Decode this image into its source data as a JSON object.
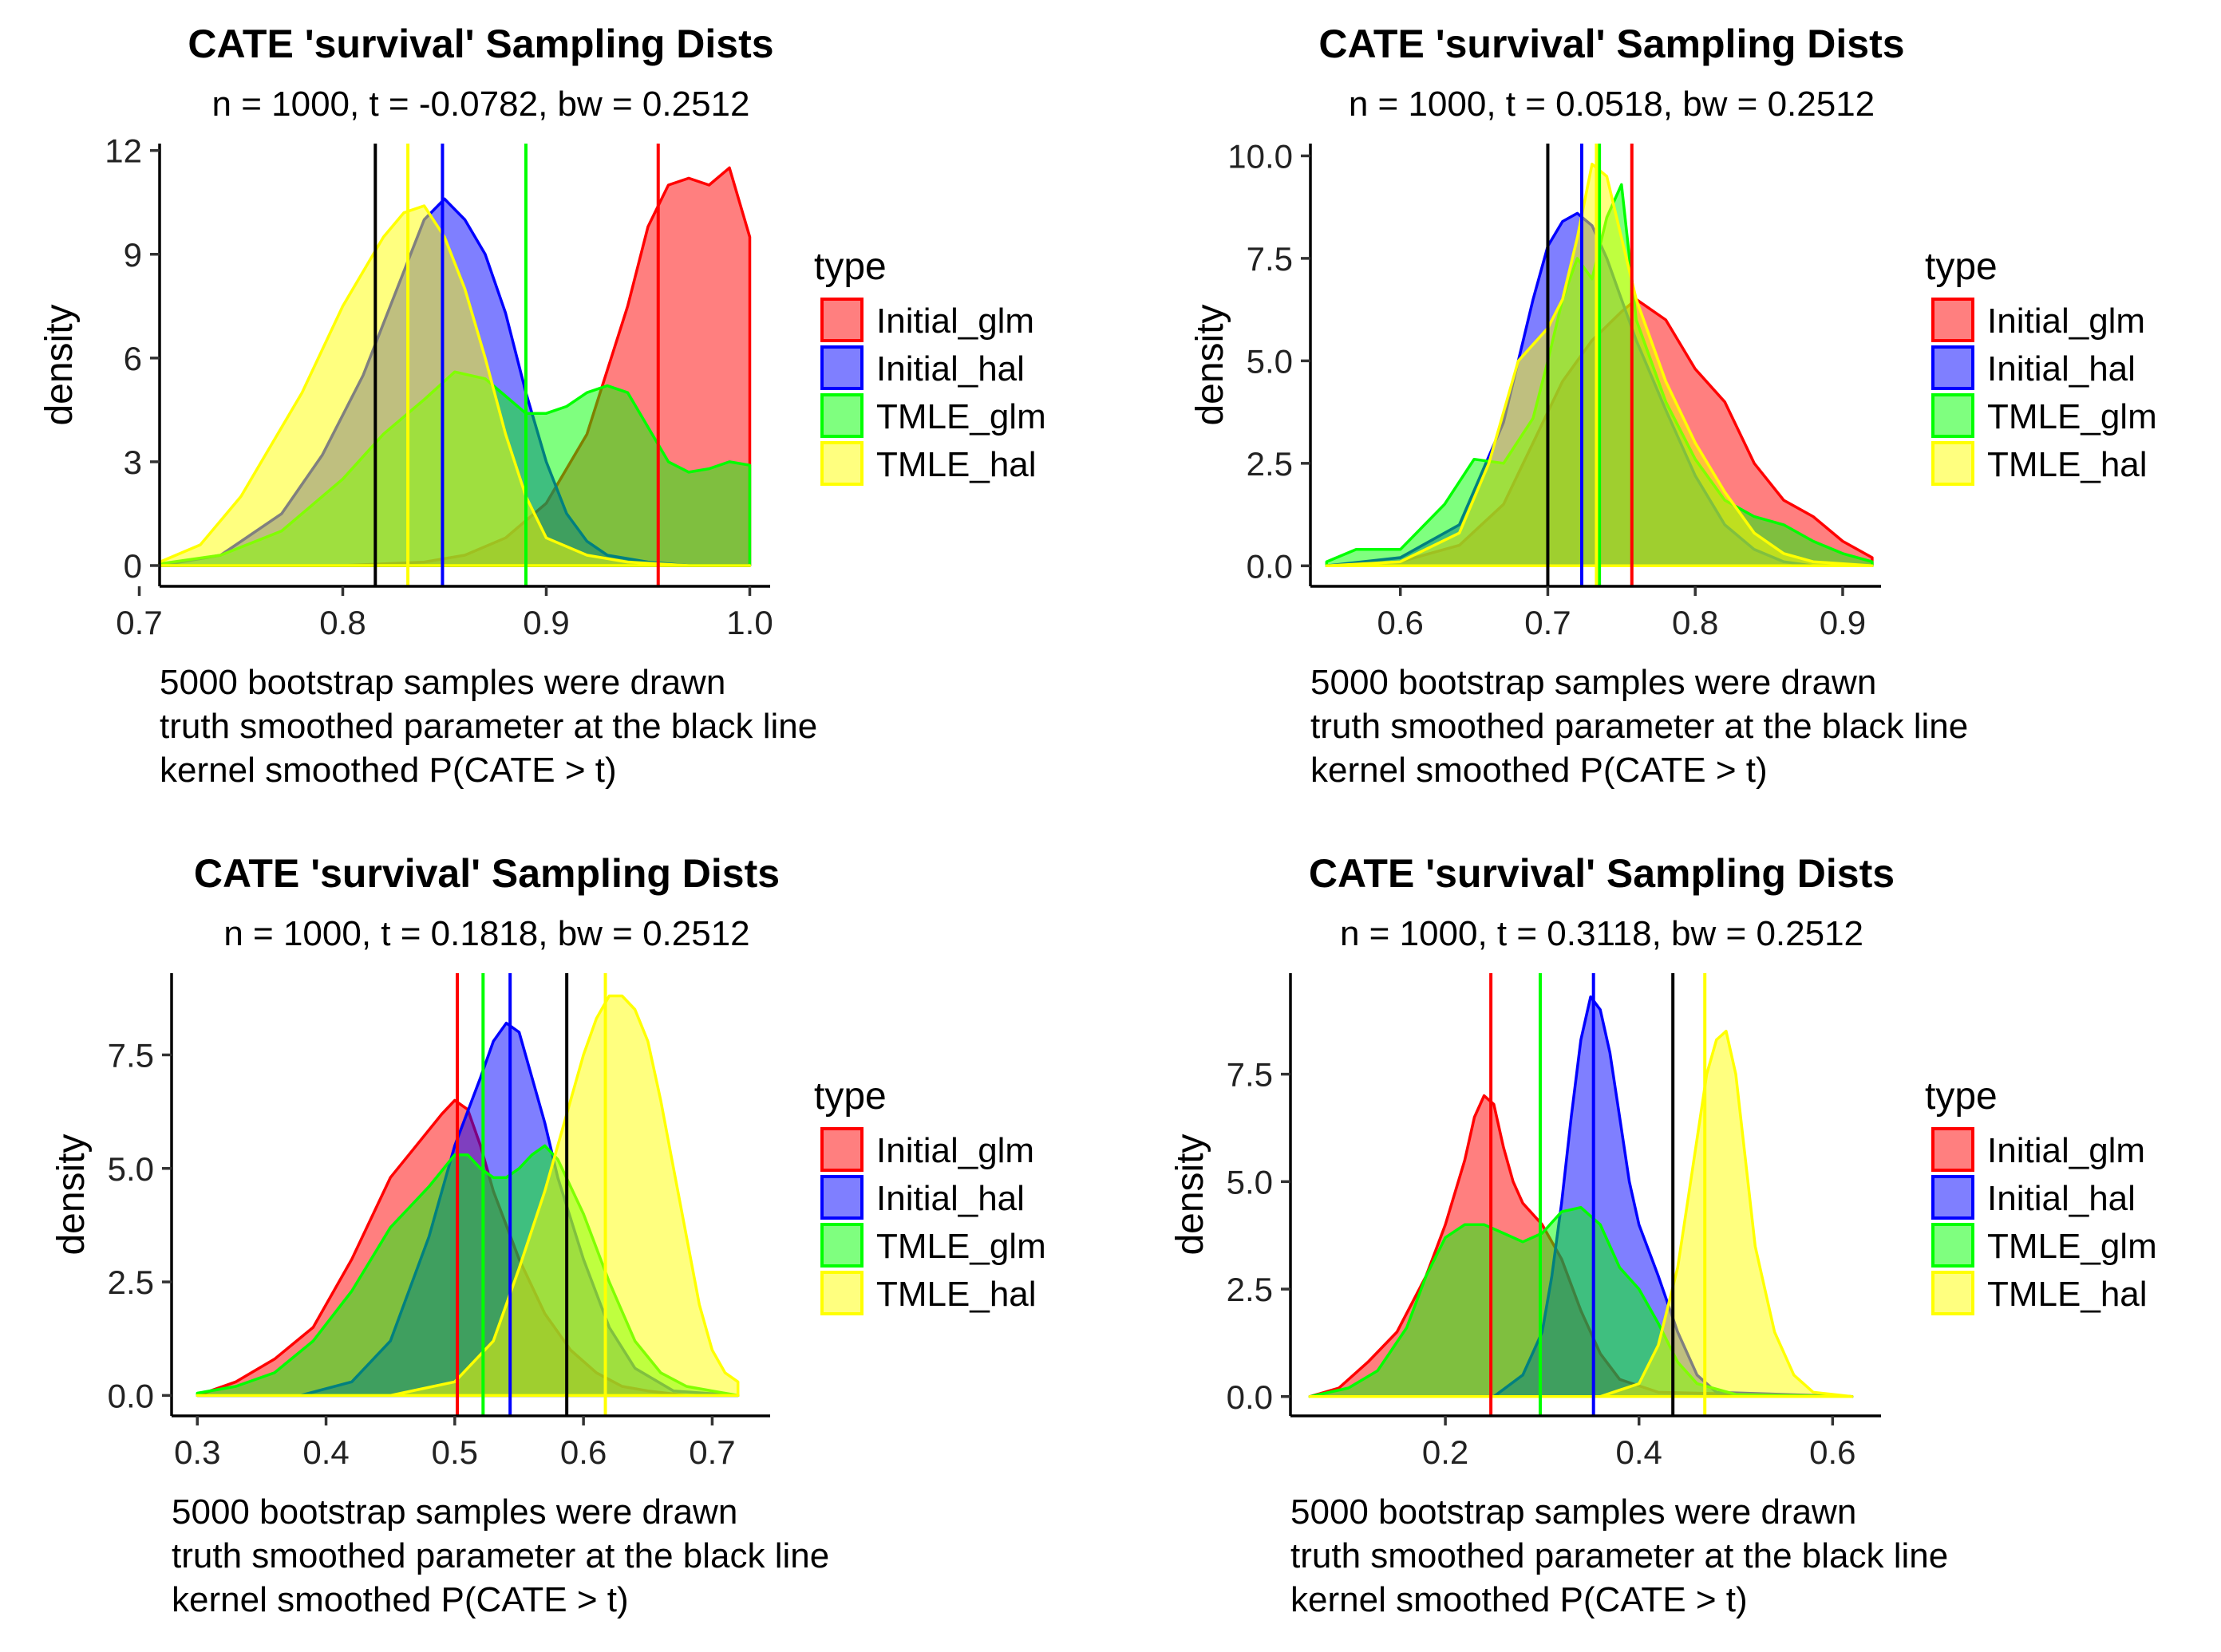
{
  "legend_title": "type",
  "series_colors": {
    "Initial_glm": "#FF0000",
    "Initial_hal": "#0000FF",
    "TMLE_glm": "#00FF00",
    "TMLE_hal": "#FFFF00",
    "truth": "#000000"
  },
  "chart_data": [
    {
      "type": "area",
      "title": "CATE 'survival' Sampling Dists",
      "subtitle": "n = 1000, t = -0.0782, bw = 0.2512",
      "xlabel": "",
      "caption_lines": [
        "5000 bootstrap samples were drawn",
        "truth smoothed parameter at the black line",
        "kernel smoothed P(CATE > t)"
      ],
      "ylabel": "density",
      "xlim": [
        0.71,
        1.01
      ],
      "ylim": [
        -0.6,
        12.2
      ],
      "xticks": [
        0.7,
        0.8,
        0.9,
        1.0
      ],
      "xtick_labels": [
        "0.7",
        "0.8",
        "0.9",
        "1.0"
      ],
      "yticks": [
        0,
        3,
        6,
        9,
        12
      ],
      "ytick_labels": [
        "0",
        "3",
        "6",
        "9",
        "12"
      ],
      "legend": {
        "title": "type",
        "entries": [
          "Initial_glm",
          "Initial_hal",
          "TMLE_glm",
          "TMLE_hal"
        ],
        "position": "right"
      },
      "truth_line": 0.816,
      "series": [
        {
          "name": "Initial_glm",
          "mean": 0.955,
          "x": [
            0.71,
            0.8,
            0.84,
            0.86,
            0.88,
            0.9,
            0.92,
            0.94,
            0.95,
            0.96,
            0.97,
            0.98,
            0.99,
            1.0
          ],
          "y": [
            0,
            0,
            0.1,
            0.3,
            0.8,
            1.8,
            3.8,
            7.5,
            9.8,
            11.0,
            11.2,
            11.0,
            11.5,
            9.5
          ]
        },
        {
          "name": "Initial_hal",
          "mean": 0.849,
          "x": [
            0.71,
            0.74,
            0.77,
            0.79,
            0.81,
            0.83,
            0.84,
            0.85,
            0.86,
            0.87,
            0.88,
            0.89,
            0.9,
            0.91,
            0.92,
            0.93,
            0.95,
            0.97,
            1.0
          ],
          "y": [
            0,
            0.3,
            1.5,
            3.2,
            5.5,
            8.5,
            10.0,
            10.6,
            10.0,
            9.0,
            7.3,
            5.0,
            3.0,
            1.5,
            0.7,
            0.3,
            0.1,
            0,
            0
          ]
        },
        {
          "name": "TMLE_glm",
          "mean": 0.89,
          "x": [
            0.71,
            0.74,
            0.77,
            0.8,
            0.82,
            0.84,
            0.855,
            0.87,
            0.88,
            0.89,
            0.9,
            0.91,
            0.92,
            0.93,
            0.94,
            0.95,
            0.96,
            0.97,
            0.98,
            0.99,
            1.0
          ],
          "y": [
            0.05,
            0.3,
            1.0,
            2.5,
            3.8,
            4.8,
            5.6,
            5.4,
            4.9,
            4.4,
            4.4,
            4.6,
            5.0,
            5.2,
            5.0,
            4.0,
            3.0,
            2.7,
            2.8,
            3.0,
            2.9
          ]
        },
        {
          "name": "TMLE_hal",
          "mean": 0.832,
          "x": [
            0.71,
            0.73,
            0.75,
            0.76,
            0.78,
            0.8,
            0.82,
            0.83,
            0.84,
            0.85,
            0.86,
            0.87,
            0.88,
            0.89,
            0.9,
            0.92,
            0.94,
            0.97,
            1.0
          ],
          "y": [
            0.1,
            0.6,
            2.0,
            3.0,
            5.0,
            7.5,
            9.5,
            10.2,
            10.4,
            9.5,
            8.0,
            6.0,
            3.8,
            2.0,
            0.8,
            0.3,
            0.1,
            0,
            0
          ]
        }
      ]
    },
    {
      "type": "area",
      "title": "CATE 'survival' Sampling Dists",
      "subtitle": "n = 1000, t = 0.0518, bw = 0.2512",
      "xlabel": "",
      "caption_lines": [
        "5000 bootstrap samples were drawn",
        "truth smoothed parameter at the black line",
        "kernel smoothed P(CATE > t)"
      ],
      "ylabel": "density",
      "xlim": [
        0.539,
        0.926
      ],
      "ylim": [
        -0.5,
        10.3
      ],
      "xticks": [
        0.6,
        0.7,
        0.8,
        0.9
      ],
      "xtick_labels": [
        "0.6",
        "0.7",
        "0.8",
        "0.9"
      ],
      "yticks": [
        0,
        2.5,
        5.0,
        7.5,
        10.0
      ],
      "ytick_labels": [
        "0.0",
        "2.5",
        "5.0",
        "7.5",
        "10.0"
      ],
      "legend": {
        "title": "type",
        "entries": [
          "Initial_glm",
          "Initial_hal",
          "TMLE_glm",
          "TMLE_hal"
        ],
        "position": "right"
      },
      "truth_line": 0.7,
      "series": [
        {
          "name": "Initial_glm",
          "mean": 0.757,
          "x": [
            0.55,
            0.6,
            0.64,
            0.67,
            0.69,
            0.71,
            0.73,
            0.75,
            0.76,
            0.78,
            0.8,
            0.82,
            0.84,
            0.86,
            0.88,
            0.9,
            0.92
          ],
          "y": [
            0,
            0.1,
            0.5,
            1.5,
            3.0,
            4.5,
            5.5,
            6.2,
            6.5,
            6.0,
            4.8,
            4.0,
            2.5,
            1.6,
            1.2,
            0.6,
            0.2
          ]
        },
        {
          "name": "Initial_hal",
          "mean": 0.723,
          "x": [
            0.55,
            0.6,
            0.64,
            0.67,
            0.69,
            0.7,
            0.71,
            0.72,
            0.73,
            0.74,
            0.75,
            0.76,
            0.78,
            0.8,
            0.82,
            0.84,
            0.86,
            0.88,
            0.92
          ],
          "y": [
            0,
            0.2,
            1.0,
            3.5,
            6.5,
            7.8,
            8.4,
            8.6,
            8.3,
            7.5,
            6.5,
            5.5,
            3.8,
            2.2,
            1.0,
            0.4,
            0.1,
            0,
            0
          ]
        },
        {
          "name": "TMLE_glm",
          "mean": 0.735,
          "x": [
            0.55,
            0.57,
            0.6,
            0.63,
            0.65,
            0.67,
            0.69,
            0.7,
            0.71,
            0.72,
            0.73,
            0.74,
            0.75,
            0.76,
            0.77,
            0.78,
            0.8,
            0.82,
            0.84,
            0.86,
            0.88,
            0.9,
            0.92
          ],
          "y": [
            0.1,
            0.4,
            0.4,
            1.5,
            2.6,
            2.5,
            3.6,
            5.0,
            6.5,
            7.5,
            7.0,
            8.5,
            9.3,
            6.0,
            5.0,
            4.0,
            2.6,
            1.6,
            1.2,
            1.0,
            0.6,
            0.3,
            0.1
          ]
        },
        {
          "name": "TMLE_hal",
          "mean": 0.733,
          "x": [
            0.55,
            0.6,
            0.64,
            0.66,
            0.68,
            0.7,
            0.71,
            0.72,
            0.73,
            0.74,
            0.75,
            0.76,
            0.78,
            0.8,
            0.82,
            0.84,
            0.86,
            0.88,
            0.92
          ],
          "y": [
            0,
            0.1,
            0.8,
            2.5,
            5.0,
            5.8,
            6.5,
            8.0,
            9.8,
            9.5,
            8.0,
            6.5,
            4.5,
            3.0,
            1.8,
            0.8,
            0.3,
            0.1,
            0
          ]
        }
      ]
    },
    {
      "type": "area",
      "title": "CATE 'survival' Sampling Dists",
      "subtitle": "n = 1000, t = 0.1818, bw = 0.2512",
      "xlabel": "",
      "caption_lines": [
        "5000 bootstrap samples were drawn",
        "truth smoothed parameter at the black line",
        "kernel smoothed P(CATE > t)"
      ],
      "ylabel": "density",
      "xlim": [
        0.28,
        0.745
      ],
      "ylim": [
        -0.45,
        9.3
      ],
      "xticks": [
        0.3,
        0.4,
        0.5,
        0.6,
        0.7
      ],
      "xtick_labels": [
        "0.3",
        "0.4",
        "0.5",
        "0.6",
        "0.7"
      ],
      "yticks": [
        0,
        2.5,
        5.0,
        7.5
      ],
      "ytick_labels": [
        "0.0",
        "2.5",
        "5.0",
        "7.5"
      ],
      "legend": {
        "title": "type",
        "entries": [
          "Initial_glm",
          "Initial_hal",
          "TMLE_glm",
          "TMLE_hal"
        ],
        "position": "right"
      },
      "truth_line": 0.587,
      "series": [
        {
          "name": "Initial_glm",
          "mean": 0.502,
          "x": [
            0.3,
            0.33,
            0.36,
            0.39,
            0.42,
            0.45,
            0.47,
            0.49,
            0.5,
            0.51,
            0.52,
            0.53,
            0.55,
            0.57,
            0.59,
            0.61,
            0.63,
            0.65,
            0.68,
            0.72
          ],
          "y": [
            0,
            0.3,
            0.8,
            1.5,
            3.0,
            4.8,
            5.5,
            6.2,
            6.5,
            6.3,
            5.5,
            4.5,
            3.0,
            1.8,
            1.0,
            0.5,
            0.2,
            0.1,
            0,
            0
          ]
        },
        {
          "name": "Initial_hal",
          "mean": 0.543,
          "x": [
            0.3,
            0.38,
            0.42,
            0.45,
            0.48,
            0.5,
            0.52,
            0.53,
            0.54,
            0.55,
            0.56,
            0.57,
            0.58,
            0.6,
            0.62,
            0.64,
            0.67,
            0.72
          ],
          "y": [
            0,
            0,
            0.3,
            1.2,
            3.5,
            5.5,
            7.0,
            7.8,
            8.2,
            8.0,
            7.0,
            6.0,
            4.8,
            3.0,
            1.5,
            0.6,
            0.1,
            0
          ]
        },
        {
          "name": "TMLE_glm",
          "mean": 0.522,
          "x": [
            0.3,
            0.33,
            0.36,
            0.39,
            0.42,
            0.45,
            0.48,
            0.5,
            0.51,
            0.52,
            0.53,
            0.54,
            0.55,
            0.56,
            0.57,
            0.58,
            0.6,
            0.62,
            0.64,
            0.66,
            0.68,
            0.72
          ],
          "y": [
            0.05,
            0.2,
            0.5,
            1.2,
            2.3,
            3.7,
            4.6,
            5.3,
            5.3,
            5.0,
            4.8,
            4.8,
            5.0,
            5.3,
            5.5,
            5.2,
            4.0,
            2.5,
            1.2,
            0.5,
            0.2,
            0
          ]
        },
        {
          "name": "TMLE_hal",
          "mean": 0.617,
          "x": [
            0.3,
            0.45,
            0.5,
            0.53,
            0.55,
            0.57,
            0.59,
            0.6,
            0.61,
            0.62,
            0.63,
            0.64,
            0.65,
            0.66,
            0.67,
            0.68,
            0.69,
            0.7,
            0.71,
            0.72
          ],
          "y": [
            0,
            0,
            0.3,
            1.2,
            2.8,
            4.5,
            6.5,
            7.5,
            8.3,
            8.8,
            8.8,
            8.5,
            7.8,
            6.5,
            5.0,
            3.5,
            2.0,
            1.0,
            0.5,
            0.3
          ]
        }
      ]
    },
    {
      "type": "area",
      "title": "CATE 'survival' Sampling Dists",
      "subtitle": "n = 1000, t = 0.3118, bw = 0.2512",
      "xlabel": "",
      "caption_lines": [
        "5000 bootstrap samples were drawn",
        "truth smoothed parameter at the black line",
        "kernel smoothed P(CATE > t)"
      ],
      "ylabel": "density",
      "xlim": [
        0.04,
        0.65
      ],
      "ylim": [
        -0.45,
        9.85
      ],
      "xticks": [
        0.2,
        0.4,
        0.6
      ],
      "xtick_labels": [
        "0.2",
        "0.4",
        "0.6"
      ],
      "yticks": [
        0,
        2.5,
        5.0,
        7.5
      ],
      "ytick_labels": [
        "0.0",
        "2.5",
        "5.0",
        "7.5"
      ],
      "legend": {
        "title": "type",
        "entries": [
          "Initial_glm",
          "Initial_hal",
          "TMLE_glm",
          "TMLE_hal"
        ],
        "position": "right"
      },
      "truth_line": 0.435,
      "series": [
        {
          "name": "Initial_glm",
          "mean": 0.247,
          "x": [
            0.06,
            0.09,
            0.12,
            0.15,
            0.18,
            0.2,
            0.22,
            0.23,
            0.24,
            0.25,
            0.26,
            0.27,
            0.28,
            0.3,
            0.32,
            0.34,
            0.36,
            0.38,
            0.42,
            0.62
          ],
          "y": [
            0,
            0.2,
            0.8,
            1.5,
            2.8,
            4.0,
            5.5,
            6.5,
            7.0,
            6.8,
            5.8,
            5.0,
            4.5,
            4.0,
            3.2,
            2.0,
            1.0,
            0.4,
            0.1,
            0
          ]
        },
        {
          "name": "Initial_hal",
          "mean": 0.353,
          "x": [
            0.06,
            0.25,
            0.28,
            0.3,
            0.31,
            0.32,
            0.33,
            0.34,
            0.35,
            0.36,
            0.37,
            0.38,
            0.39,
            0.4,
            0.42,
            0.44,
            0.46,
            0.48,
            0.62
          ],
          "y": [
            0,
            0,
            0.5,
            1.5,
            2.8,
            4.5,
            6.5,
            8.3,
            9.3,
            9.0,
            8.0,
            6.5,
            5.0,
            4.0,
            2.8,
            1.5,
            0.5,
            0.1,
            0
          ]
        },
        {
          "name": "TMLE_glm",
          "mean": 0.298,
          "x": [
            0.06,
            0.1,
            0.13,
            0.16,
            0.18,
            0.2,
            0.22,
            0.24,
            0.26,
            0.28,
            0.3,
            0.32,
            0.34,
            0.36,
            0.38,
            0.4,
            0.42,
            0.44,
            0.46,
            0.5,
            0.62
          ],
          "y": [
            0,
            0.2,
            0.6,
            1.6,
            2.8,
            3.7,
            4.0,
            4.0,
            3.8,
            3.6,
            3.8,
            4.3,
            4.4,
            4.0,
            3.0,
            2.5,
            1.7,
            0.8,
            0.3,
            0.05,
            0
          ]
        },
        {
          "name": "TMLE_hal",
          "mean": 0.468,
          "x": [
            0.06,
            0.36,
            0.4,
            0.42,
            0.44,
            0.45,
            0.46,
            0.47,
            0.48,
            0.49,
            0.5,
            0.51,
            0.52,
            0.54,
            0.56,
            0.58,
            0.62
          ],
          "y": [
            0,
            0,
            0.3,
            1.2,
            3.0,
            4.5,
            6.0,
            7.5,
            8.3,
            8.5,
            7.5,
            5.5,
            3.5,
            1.5,
            0.5,
            0.1,
            0
          ]
        }
      ]
    }
  ]
}
